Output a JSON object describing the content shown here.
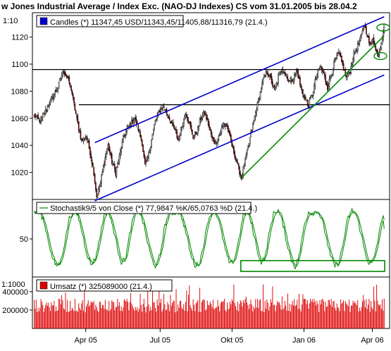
{
  "chart_data": [
    {
      "type": "candlestick",
      "title": "w Jones Industrial Average / Index Exc. (NAO-DJ Indexes) CS vom 31.01.2005 bis 28.04.2",
      "scale_label": "1:10",
      "legend": {
        "label": "Candles (*) 11347,45 USD/11343,45/11405,88/11316,79 (21.4.)",
        "color": "#0000cc",
        "placement": "top-left"
      },
      "ylim": [
        10000,
        11380
      ],
      "yticks": [
        {
          "value": 10200,
          "label": "1020"
        },
        {
          "value": 10400,
          "label": "1040"
        },
        {
          "value": 10600,
          "label": "1060"
        },
        {
          "value": 10800,
          "label": "1080"
        },
        {
          "value": 11000,
          "label": "1100"
        },
        {
          "value": 11200,
          "label": "1120"
        }
      ],
      "xlabels": [
        "Apr 05",
        "Jul 05",
        "Okt 05",
        "Jan 06",
        "Apr 06"
      ],
      "horizontal_lines": [
        10960,
        10700
      ],
      "up_color": "#ffffff",
      "down_color": "#cc0000",
      "channel_color": "#0000cc",
      "trend_color": "#008800",
      "keypoints": [
        [
          0,
          10620
        ],
        [
          6,
          10580
        ],
        [
          11,
          10640
        ],
        [
          15,
          10700
        ],
        [
          20,
          10760
        ],
        [
          25,
          10830
        ],
        [
          28,
          10900
        ],
        [
          31,
          10950
        ],
        [
          35,
          10900
        ],
        [
          39,
          10820
        ],
        [
          42,
          10700
        ],
        [
          46,
          10560
        ],
        [
          50,
          10430
        ],
        [
          55,
          10470
        ],
        [
          59,
          10350
        ],
        [
          63,
          10200
        ],
        [
          66,
          10020
        ],
        [
          70,
          10120
        ],
        [
          74,
          10280
        ],
        [
          78,
          10400
        ],
        [
          82,
          10280
        ],
        [
          86,
          10200
        ],
        [
          90,
          10320
        ],
        [
          94,
          10450
        ],
        [
          98,
          10520
        ],
        [
          102,
          10560
        ],
        [
          106,
          10600
        ],
        [
          110,
          10520
        ],
        [
          114,
          10420
        ],
        [
          117,
          10250
        ],
        [
          121,
          10330
        ],
        [
          124,
          10450
        ],
        [
          128,
          10580
        ],
        [
          132,
          10650
        ],
        [
          136,
          10690
        ],
        [
          140,
          10640
        ],
        [
          144,
          10580
        ],
        [
          148,
          10520
        ],
        [
          152,
          10440
        ],
        [
          156,
          10540
        ],
        [
          160,
          10640
        ],
        [
          164,
          10560
        ],
        [
          168,
          10460
        ],
        [
          172,
          10500
        ],
        [
          176,
          10600
        ],
        [
          180,
          10640
        ],
        [
          184,
          10560
        ],
        [
          188,
          10450
        ],
        [
          192,
          10420
        ],
        [
          196,
          10480
        ],
        [
          200,
          10560
        ],
        [
          204,
          10540
        ],
        [
          208,
          10420
        ],
        [
          212,
          10330
        ],
        [
          216,
          10230
        ],
        [
          219,
          10160
        ],
        [
          222,
          10260
        ],
        [
          226,
          10380
        ],
        [
          230,
          10520
        ],
        [
          234,
          10640
        ],
        [
          238,
          10760
        ],
        [
          242,
          10880
        ],
        [
          246,
          10950
        ],
        [
          250,
          10890
        ],
        [
          254,
          10800
        ],
        [
          258,
          10900
        ],
        [
          262,
          10970
        ],
        [
          266,
          10920
        ],
        [
          270,
          10870
        ],
        [
          274,
          10900
        ],
        [
          278,
          10950
        ],
        [
          282,
          10820
        ],
        [
          286,
          10750
        ],
        [
          290,
          10690
        ],
        [
          294,
          10780
        ],
        [
          298,
          10900
        ],
        [
          302,
          10980
        ],
        [
          306,
          10930
        ],
        [
          310,
          10830
        ],
        [
          314,
          10920
        ],
        [
          318,
          11030
        ],
        [
          322,
          11080
        ],
        [
          326,
          10990
        ],
        [
          330,
          10900
        ],
        [
          334,
          10950
        ],
        [
          338,
          11080
        ],
        [
          342,
          11130
        ],
        [
          346,
          11210
        ],
        [
          349,
          11290
        ],
        [
          352,
          11220
        ],
        [
          355,
          11130
        ],
        [
          358,
          11200
        ],
        [
          361,
          11100
        ],
        [
          364,
          11070
        ],
        [
          367,
          11170
        ],
        [
          370,
          11280
        ]
      ],
      "count": 371
    },
    {
      "type": "line",
      "title": "Stochastik9/5 von Close (*) 77,9847 %K/65,0763 %D (21.4.)",
      "legend": {
        "label": "Stochastik9/5 von Close (*) 77,9847 %K/65,0763 %D (21.4.)",
        "color": "#008800",
        "placement": "top-left"
      },
      "ylim": [
        0,
        100
      ],
      "yticks": [
        {
          "value": 50,
          "label": "50"
        }
      ],
      "series_color": "#008800",
      "highlight_box": {
        "x0": 0.59,
        "x1": 1.0,
        "y0": 2,
        "y1": 18,
        "color": "#008800"
      },
      "k_cycle": [
        88,
        92,
        80,
        55,
        25,
        10,
        15,
        45,
        80,
        92,
        85,
        60,
        30,
        12,
        20,
        50,
        85,
        90,
        70,
        40,
        15,
        22,
        60,
        88,
        93,
        75,
        45,
        20,
        8,
        30,
        70,
        90
      ],
      "last_k": 77.98,
      "last_d": 65.08
    },
    {
      "type": "bar",
      "title": "Umsatz (*) 325089000 (21.4.)",
      "scale_label": "1:1000",
      "legend": {
        "label": "Umsatz (*) 325089000 (21.4.)",
        "color": "#cc0000",
        "placement": "top-left"
      },
      "ylim": [
        0,
        560000000
      ],
      "yticks": [
        {
          "value": 200000000,
          "label": "200000"
        },
        {
          "value": 400000000,
          "label": "400000"
        }
      ],
      "bar_color": "#dd0000",
      "typical_volume": 250000000,
      "last_volume": 325089000
    }
  ]
}
